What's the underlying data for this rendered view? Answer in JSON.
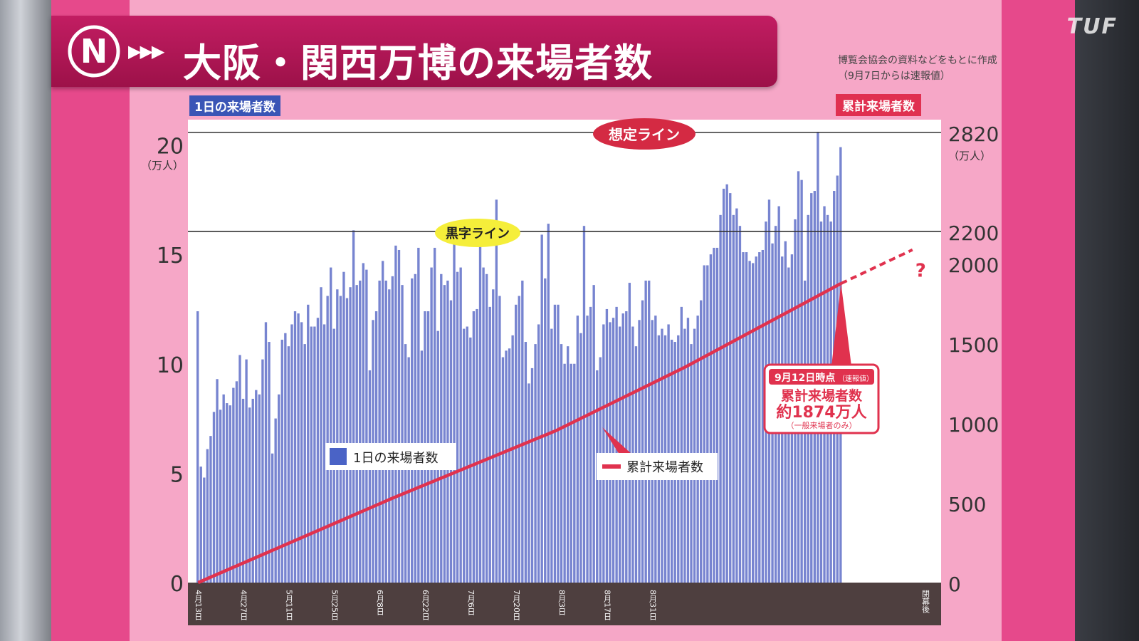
{
  "title": "大阪・関西万博の来場者数",
  "title_arrows": "▶▶▶",
  "logo_letter": "N",
  "source_note": [
    "博覧会協会の資料などをもとに作成",
    "（9月7日からは速報値）"
  ],
  "corner_logo": "TUF",
  "left_axis_tag": "1日の来場者数",
  "right_axis_tag": "累計来場者数",
  "colors": {
    "bar": "#7784d0",
    "line": "#e0324e",
    "frame": "#e6498b",
    "tag_blue": "#3a55b6",
    "tag_red": "#e03050"
  },
  "chart_data": {
    "type": "bar",
    "left_axis": {
      "ticks": [
        0,
        5,
        10,
        15,
        20
      ],
      "unit": "（万人）",
      "ylim": [
        0,
        20.7
      ]
    },
    "right_axis": {
      "ticks": [
        0,
        500,
        1000,
        1500,
        2000,
        2200,
        2820
      ],
      "unit": "（万人）",
      "ylim": [
        0,
        2820
      ]
    },
    "x_tick_labels": [
      "4月13日",
      "4月27日",
      "5月11日",
      "5月25日",
      "6月8日",
      "6月22日",
      "7月6日",
      "7月20日",
      "8月3日",
      "8月17日",
      "8月31日",
      "閉幕後"
    ],
    "reference_lines": [
      {
        "label": "想定ライン",
        "value": 2820,
        "axis": "right"
      },
      {
        "label": "黒字ライン",
        "value": 2200,
        "axis": "right"
      }
    ],
    "series": [
      {
        "name": "1日の来場者数",
        "type": "bar",
        "axis": "left",
        "start_date": "4月13日",
        "values": [
          12.4,
          5.3,
          4.8,
          6.1,
          6.7,
          7.8,
          9.3,
          7.9,
          8.6,
          8.2,
          8.1,
          8.9,
          9.2,
          10.4,
          8.4,
          10.2,
          8.0,
          8.4,
          8.8,
          8.6,
          10.2,
          11.9,
          11.0,
          5.9,
          7.5,
          8.6,
          11.1,
          11.4,
          10.8,
          11.8,
          12.4,
          12.3,
          11.9,
          10.9,
          12.7,
          11.7,
          11.7,
          12.1,
          13.5,
          11.8,
          13.1,
          14.4,
          11.6,
          13.4,
          13.1,
          14.2,
          13.0,
          13.5,
          16.1,
          13.6,
          13.8,
          14.6,
          14.3,
          9.7,
          12.0,
          12.4,
          13.8,
          14.7,
          13.8,
          13.4,
          14.0,
          15.4,
          15.2,
          13.6,
          10.9,
          10.3,
          13.9,
          14.1,
          15.3,
          10.6,
          12.4,
          12.4,
          14.4,
          15.3,
          11.5,
          14.1,
          13.6,
          13.8,
          12.9,
          15.8,
          14.2,
          14.4,
          11.6,
          11.7,
          11.2,
          12.4,
          12.5,
          16.5,
          14.4,
          14.1,
          12.6,
          13.4,
          17.5,
          13.1,
          10.3,
          10.6,
          10.7,
          11.3,
          12.7,
          13.1,
          13.8,
          11.0,
          9.1,
          9.8,
          10.9,
          11.8,
          15.9,
          13.9,
          16.4,
          11.6,
          12.7,
          12.7,
          10.9,
          10.0,
          10.8,
          10.0,
          10.0,
          12.2,
          11.4,
          16.3,
          12.2,
          12.6,
          13.6,
          9.7,
          10.3,
          11.8,
          12.5,
          11.9,
          12.1,
          12.6,
          11.7,
          12.3,
          12.4,
          13.7,
          11.7,
          10.8,
          12.0,
          12.9,
          13.8,
          13.8,
          12.0,
          12.2,
          11.3,
          11.6,
          11.3,
          11.8,
          11.1,
          11.0,
          11.3,
          12.6,
          11.6,
          12.1,
          10.9,
          11.6,
          12.2,
          12.9,
          14.5,
          14.5,
          15.0,
          15.3,
          15.3,
          16.8,
          18.0,
          18.2,
          17.8,
          16.8,
          17.1,
          16.3,
          15.1,
          15.1,
          14.7,
          14.6,
          14.9,
          15.1,
          15.2,
          16.5,
          17.5,
          15.5,
          16.3,
          17.2,
          14.9,
          15.6,
          14.4,
          15.0,
          16.6,
          18.8,
          18.4,
          13.8,
          16.8,
          17.8,
          17.9,
          20.6,
          16.5,
          17.2,
          16.8,
          16.5,
          17.9,
          18.6,
          19.9
        ]
      },
      {
        "name": "累計来場者数",
        "type": "line",
        "axis": "right",
        "points": [
          [
            0,
            0
          ],
          [
            60,
            530
          ],
          [
            110,
            950
          ],
          [
            150,
            1350
          ],
          [
            198,
            1874
          ]
        ],
        "projection": [
          [
            198,
            1874
          ],
          [
            220,
            2085
          ]
        ]
      }
    ],
    "annotations": {
      "latest": {
        "header": "9月12日時点",
        "header_note": "（速報値）",
        "label": "累計来場者数",
        "value": "約1874万人",
        "note": "（一般来場者のみ）"
      },
      "question_mark": "?"
    },
    "legend": [
      "1日の来場者数",
      "累計来場者数"
    ]
  }
}
